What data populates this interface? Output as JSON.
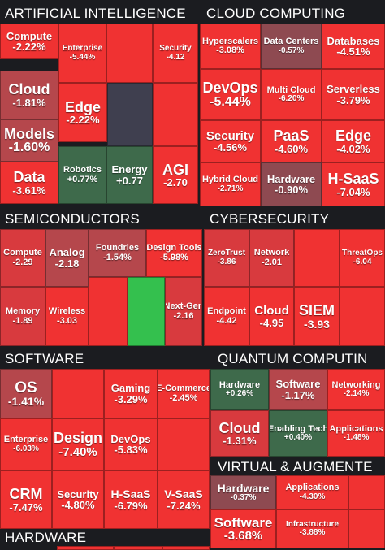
{
  "colors": {
    "background": "#1b1c20",
    "neg_strong": "#f03232",
    "neg_mid": "#d83a3e",
    "neg_light": "#b5474c",
    "neg_faint": "#8e4a51",
    "neutral": "#3f3f4f",
    "pos_light": "#3e6a4b",
    "pos_strong": "#34c04e"
  },
  "chart_data": {
    "type": "treemap",
    "sections": [
      {
        "title": "ARTIFICIAL INTELLIGENCE",
        "tiles": [
          {
            "name": "Compute",
            "value": "-2.22%"
          },
          {
            "name": "Enterprise",
            "value": "-5.44%"
          },
          {
            "name": "",
            "value": ""
          },
          {
            "name": "Security",
            "value": "-4.12"
          },
          {
            "name": "Cloud",
            "value": "-1.81%"
          },
          {
            "name": "Edge",
            "value": "-2.22%"
          },
          {
            "name": "",
            "value": ""
          },
          {
            "name": "",
            "value": ""
          },
          {
            "name": "Models",
            "value": "-1.60%"
          },
          {
            "name": "Data",
            "value": "-3.61%"
          },
          {
            "name": "Robotics",
            "value": "+0.77%"
          },
          {
            "name": "Energy",
            "value": "+0.77"
          },
          {
            "name": "AGI",
            "value": "-2.70"
          }
        ]
      },
      {
        "title": "CLOUD COMPUTING",
        "tiles": [
          {
            "name": "Hyperscalers",
            "value": "-3.08%"
          },
          {
            "name": "Data Centers",
            "value": "-0.57%"
          },
          {
            "name": "Databases",
            "value": "-4.51%"
          },
          {
            "name": "DevOps",
            "value": "-5.44%"
          },
          {
            "name": "Multi Cloud",
            "value": "-6.20%"
          },
          {
            "name": "Serverless",
            "value": "-3.79%"
          },
          {
            "name": "Security",
            "value": "-4.56%"
          },
          {
            "name": "PaaS",
            "value": "-4.60%"
          },
          {
            "name": "Edge",
            "value": "-4.02%"
          },
          {
            "name": "Hybrid Cloud",
            "value": "-2.71%"
          },
          {
            "name": "Hardware",
            "value": "-0.90%"
          },
          {
            "name": "H-SaaS",
            "value": "-7.04%"
          }
        ]
      },
      {
        "title": "SEMICONDUCTORS",
        "tiles": [
          {
            "name": "Compute",
            "value": "-2.29"
          },
          {
            "name": "Analog",
            "value": "-2.18"
          },
          {
            "name": "Foundries",
            "value": "-1.54%"
          },
          {
            "name": "Design Tools",
            "value": "-5.98%"
          },
          {
            "name": "Memory",
            "value": "-1.89"
          },
          {
            "name": "Wireless",
            "value": "-3.03"
          },
          {
            "name": "",
            "value": ""
          },
          {
            "name": "",
            "value": ""
          },
          {
            "name": "Next-Gen",
            "value": "-2.16"
          }
        ]
      },
      {
        "title": "CYBERSECURITY",
        "tiles": [
          {
            "name": "ZeroTrust",
            "value": "-3.86"
          },
          {
            "name": "Network",
            "value": "-2.01"
          },
          {
            "name": "",
            "value": ""
          },
          {
            "name": "ThreatOps",
            "value": "-6.04"
          },
          {
            "name": "Endpoint",
            "value": "-4.42"
          },
          {
            "name": "Cloud",
            "value": "-4.95"
          },
          {
            "name": "SIEM",
            "value": "-3.93"
          },
          {
            "name": "",
            "value": ""
          }
        ]
      },
      {
        "title": "SOFTWARE",
        "tiles": [
          {
            "name": "OS",
            "value": "-1.41%"
          },
          {
            "name": "",
            "value": ""
          },
          {
            "name": "Gaming",
            "value": "-3.29%"
          },
          {
            "name": "E-Commerce",
            "value": "-2.45%"
          },
          {
            "name": "Enterprise",
            "value": "-6.03%"
          },
          {
            "name": "Design",
            "value": "-7.40%"
          },
          {
            "name": "DevOps",
            "value": "-5.83%"
          },
          {
            "name": "",
            "value": ""
          },
          {
            "name": "CRM",
            "value": "-7.47%"
          },
          {
            "name": "Security",
            "value": "-4.80%"
          },
          {
            "name": "H-SaaS",
            "value": "-6.79%"
          },
          {
            "name": "V-SaaS",
            "value": "-7.24%"
          }
        ]
      },
      {
        "title": "QUANTUM COMPUTIN",
        "tiles": [
          {
            "name": "Hardware",
            "value": "+0.26%"
          },
          {
            "name": "Software",
            "value": "-1.17%"
          },
          {
            "name": "Networking",
            "value": "-2.14%"
          },
          {
            "name": "Cloud",
            "value": "-1.31%"
          },
          {
            "name": "Enabling Tech",
            "value": "+0.40%"
          },
          {
            "name": "Applications",
            "value": "-1.48%"
          }
        ]
      },
      {
        "title": "VIRTUAL & AUGMENTE",
        "tiles": [
          {
            "name": "Hardware",
            "value": "-0.37%"
          },
          {
            "name": "Applications",
            "value": "-4.30%"
          },
          {
            "name": "",
            "value": ""
          },
          {
            "name": "Software",
            "value": "-3.68%"
          },
          {
            "name": "Infrastructure",
            "value": "-3.88%"
          },
          {
            "name": "",
            "value": ""
          }
        ]
      },
      {
        "title": "HARDWARE",
        "tiles": []
      }
    ]
  }
}
